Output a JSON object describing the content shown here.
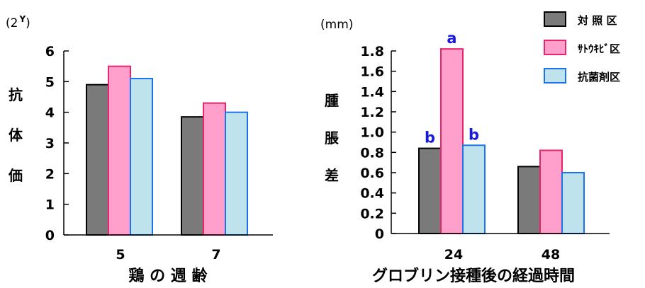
{
  "colors": {
    "control": "#7a7a7a",
    "sugarcane": "#ff9fcb",
    "antibiotic": "#bfe3ec",
    "control_stroke": "#000000",
    "sugarcane_stroke": "#e8246a",
    "antibiotic_stroke": "#1a73e8",
    "significance": "#1a1adc"
  },
  "legend": {
    "placement": "top-right",
    "items": [
      {
        "label": "対 照 区"
      },
      {
        "label": "ｻﾄｳｷﾋﾞ区"
      },
      {
        "label": "抗菌剤区"
      }
    ]
  },
  "chart_data": [
    {
      "type": "bar",
      "unit_label": "(2 Y)",
      "unit_base": "(2",
      "unit_sup": "Y",
      "unit_close": ")",
      "ylabel_chars": [
        "抗",
        "体",
        "価"
      ],
      "xlabel": "鶏 の 週 齢",
      "categories": [
        "5",
        "7"
      ],
      "ylim": [
        0,
        6
      ],
      "yticks": [
        "0",
        "1",
        "2",
        "3",
        "4",
        "5",
        "6"
      ],
      "grid": false,
      "series": [
        {
          "name": "対 照 区",
          "values": [
            4.9,
            3.85
          ]
        },
        {
          "name": "ｻﾄｳｷﾋﾞ区",
          "values": [
            5.5,
            4.3
          ]
        },
        {
          "name": "抗菌剤区",
          "values": [
            5.1,
            4.0
          ]
        }
      ]
    },
    {
      "type": "bar",
      "unit_label": "(mm)",
      "ylabel_chars": [
        "腫",
        "脹",
        "差"
      ],
      "xlabel": "グロブリン接種後の経過時間",
      "categories": [
        "24",
        "48"
      ],
      "ylim": [
        0,
        1.8
      ],
      "yticks": [
        "0",
        "0.2",
        "0.4",
        "0.6",
        "0.8",
        "1.0",
        "1.2",
        "1.4",
        "1.6",
        "1.8"
      ],
      "grid": false,
      "series": [
        {
          "name": "対 照 区",
          "values": [
            0.84,
            0.66
          ]
        },
        {
          "name": "ｻﾄｳｷﾋﾞ区",
          "values": [
            1.82,
            0.82
          ]
        },
        {
          "name": "抗菌剤区",
          "values": [
            0.87,
            0.6
          ]
        }
      ],
      "annotations": [
        {
          "category_index": 0,
          "series_index": 0,
          "text": "b"
        },
        {
          "category_index": 0,
          "series_index": 1,
          "text": "a"
        },
        {
          "category_index": 0,
          "series_index": 2,
          "text": "b"
        }
      ]
    }
  ]
}
